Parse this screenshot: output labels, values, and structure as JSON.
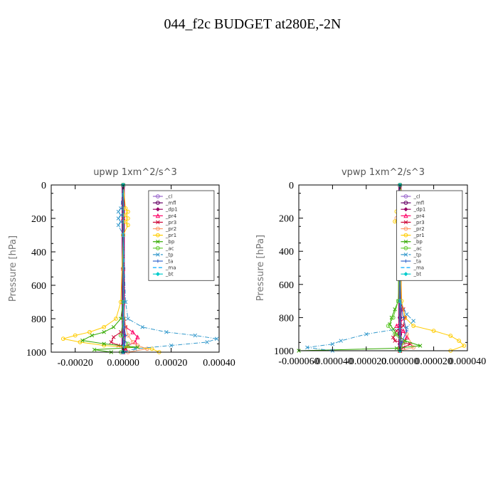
{
  "figure": {
    "title": "044_f2c  BUDGET at280E,-2N"
  },
  "chart_data": [
    {
      "type": "line",
      "title": "upwp   1xm^2/s^3",
      "ylabel": "Pressure [hPa]",
      "xlim": [
        -0.0003,
        0.0004
      ],
      "ylim": [
        1000,
        0
      ],
      "yticks": [
        0,
        200,
        400,
        600,
        800,
        1000
      ],
      "ytick_labels": [
        "0",
        "200",
        "400",
        "600",
        "800",
        "1000"
      ],
      "xticks": [
        -0.0002,
        0.0,
        0.0002,
        0.0004
      ],
      "xtick_labels": [
        "-0.00020",
        "0.00000",
        "0.00020",
        "0.00040"
      ],
      "grid": false,
      "legend_position": "top-right",
      "series": [
        {
          "name": "_cl",
          "color": "#9966cc",
          "style": "solid",
          "marker": "circle",
          "y": [
            0,
            100,
            300,
            500,
            700,
            800,
            900,
            960,
            1000
          ],
          "x": [
            0,
            0,
            0,
            0,
            0,
            0,
            0,
            0,
            0
          ]
        },
        {
          "name": "_mfl",
          "color": "#660066",
          "style": "solid",
          "marker": "circle",
          "y": [
            0,
            100,
            300,
            500,
            700,
            800,
            900,
            960,
            1000
          ],
          "x": [
            0,
            0,
            0,
            0,
            0,
            0,
            0,
            0,
            0
          ]
        },
        {
          "name": "_dp1",
          "color": "#990066",
          "style": "solid",
          "marker": "diamond",
          "y": [
            0,
            100,
            300,
            500,
            700,
            800,
            900,
            960,
            1000
          ],
          "x": [
            0,
            0,
            0,
            0,
            0,
            0,
            0,
            0,
            0
          ]
        },
        {
          "name": "_pr4",
          "color": "#ff0066",
          "style": "solid",
          "marker": "triangle",
          "y": [
            0,
            200,
            500,
            700,
            800,
            850,
            880,
            910,
            940,
            960,
            980,
            1000
          ],
          "x": [
            0,
            0,
            0,
            0,
            3e-06,
            1e-05,
            4e-05,
            6e-05,
            5e-05,
            2e-05,
            1e-05,
            0
          ]
        },
        {
          "name": "_pr3",
          "color": "#cc0033",
          "style": "solid",
          "marker": "x",
          "y": [
            0,
            200,
            500,
            700,
            800,
            850,
            880,
            910,
            940,
            960,
            980,
            1000
          ],
          "x": [
            0,
            0,
            0,
            0,
            3e-06,
            1e-05,
            -1e-05,
            -4e-05,
            -5e-05,
            -2e-05,
            1e-05,
            0
          ]
        },
        {
          "name": "_pr2",
          "color": "#ff9966",
          "style": "solid",
          "marker": "circle",
          "y": [
            0,
            700,
            850,
            900,
            940,
            960,
            980,
            1000
          ],
          "x": [
            0,
            0,
            1e-05,
            2e-05,
            4e-05,
            6e-05,
            0.0001,
            2e-05
          ]
        },
        {
          "name": "_pr1",
          "color": "#ffcc00",
          "style": "solid",
          "marker": "circle",
          "y": [
            0,
            140,
            160,
            180,
            200,
            220,
            240,
            300,
            700,
            800,
            850,
            880,
            900,
            920,
            940,
            960,
            980,
            1000
          ],
          "x": [
            0,
            1e-05,
            2e-05,
            1e-05,
            2e-05,
            1e-05,
            2e-05,
            0,
            -1e-05,
            -3e-05,
            -8e-05,
            -0.00014,
            -0.0002,
            -0.00025,
            -0.00018,
            -8e-05,
            0.00012,
            0.00015
          ]
        },
        {
          "name": "_bp",
          "color": "#33aa00",
          "style": "solid",
          "marker": "x",
          "y": [
            0,
            700,
            800,
            850,
            880,
            900,
            930,
            950,
            970,
            985,
            1000
          ],
          "x": [
            0,
            0,
            -1e-05,
            -4e-05,
            -8e-05,
            -0.00013,
            -0.00017,
            -8e-05,
            6e-05,
            -0.00012,
            -5e-05
          ]
        },
        {
          "name": "_ac",
          "color": "#66cc33",
          "style": "solid",
          "marker": "circle",
          "y": [
            0,
            800,
            900,
            950,
            1000
          ],
          "x": [
            0,
            0,
            -1e-05,
            2e-05,
            -1e-05
          ]
        },
        {
          "name": "_tp",
          "color": "#3399cc",
          "style": "dashdot",
          "marker": "x",
          "y": [
            0,
            140,
            160,
            180,
            200,
            220,
            240,
            300,
            700,
            800,
            850,
            880,
            900,
            920,
            940,
            960,
            980,
            1000
          ],
          "x": [
            0,
            -1e-05,
            -2e-05,
            -1e-05,
            -2e-05,
            -1e-05,
            -2e-05,
            0,
            1e-05,
            2e-05,
            8e-05,
            0.00018,
            0.0003,
            0.00039,
            0.00035,
            0.0002,
            5e-05,
            0
          ]
        },
        {
          "name": "_ta",
          "color": "#3366cc",
          "style": "solid",
          "marker": "plus",
          "y": [
            0,
            700,
            850,
            900,
            940,
            960,
            1000
          ],
          "x": [
            0,
            0,
            5e-06,
            1e-05,
            8e-06,
            3e-06,
            0
          ]
        },
        {
          "name": "_ma",
          "color": "#00aaff",
          "style": "dash",
          "marker": "none",
          "y": [
            0,
            1000
          ],
          "x": [
            0,
            0
          ]
        },
        {
          "name": "_bt",
          "color": "#00cccc",
          "style": "solid",
          "marker": "diamond",
          "y": [
            0,
            1000
          ],
          "x": [
            0,
            0
          ]
        }
      ]
    },
    {
      "type": "line",
      "title": "vpwp   1xm^2/s^3",
      "ylabel": "Pressure [hPa]",
      "xlim": [
        -6e-05,
        4e-05
      ],
      "ylim": [
        1000,
        0
      ],
      "yticks": [
        0,
        200,
        400,
        600,
        800,
        1000
      ],
      "ytick_labels": [
        "0",
        "200",
        "400",
        "600",
        "800",
        "1000"
      ],
      "xticks": [
        -6e-05,
        -4e-05,
        -2e-05,
        0.0,
        2e-05,
        4e-05
      ],
      "xtick_labels": [
        "-0.000060",
        "-0.000040",
        "-0.000020",
        "0.000000",
        "0.000020",
        "0.000040"
      ],
      "grid": false,
      "legend_position": "top-right",
      "series": [
        {
          "name": "_cl",
          "color": "#9966cc",
          "style": "solid",
          "marker": "circle",
          "y": [
            0,
            100,
            300,
            500,
            700,
            800,
            900,
            960,
            1000
          ],
          "x": [
            0,
            0,
            0,
            0,
            0,
            0,
            0,
            0,
            0
          ]
        },
        {
          "name": "_mfl",
          "color": "#660066",
          "style": "solid",
          "marker": "circle",
          "y": [
            0,
            100,
            300,
            500,
            700,
            800,
            900,
            960,
            1000
          ],
          "x": [
            0,
            0,
            0,
            0,
            0,
            0,
            0,
            0,
            0
          ]
        },
        {
          "name": "_dp1",
          "color": "#990066",
          "style": "solid",
          "marker": "diamond",
          "y": [
            0,
            100,
            300,
            500,
            700,
            800,
            900,
            960,
            1000
          ],
          "x": [
            0,
            0,
            0,
            0,
            0,
            0,
            0,
            0,
            0
          ]
        },
        {
          "name": "_pr4",
          "color": "#ff0066",
          "style": "solid",
          "marker": "triangle",
          "y": [
            0,
            700,
            750,
            800,
            850,
            880,
            920,
            950,
            980,
            1000
          ],
          "x": [
            0,
            0,
            2e-06,
            3e-06,
            -2e-06,
            2e-06,
            4e-06,
            2e-06,
            0,
            0
          ]
        },
        {
          "name": "_pr3",
          "color": "#cc0033",
          "style": "solid",
          "marker": "x",
          "y": [
            0,
            700,
            750,
            800,
            850,
            880,
            920,
            940,
            960,
            980,
            1000
          ],
          "x": [
            0,
            0,
            2e-06,
            3e-06,
            2e-06,
            -2e-06,
            -4e-06,
            -3e-06,
            6e-06,
            2e-06,
            0
          ]
        },
        {
          "name": "_pr2",
          "color": "#ff9966",
          "style": "solid",
          "marker": "circle",
          "y": [
            0,
            150,
            200,
            250,
            300,
            700,
            900,
            980,
            1000
          ],
          "x": [
            0,
            2e-06,
            -2e-06,
            1e-06,
            0,
            0,
            4e-06,
            8e-06,
            0
          ]
        },
        {
          "name": "_pr1",
          "color": "#ffcc00",
          "style": "solid",
          "marker": "circle",
          "y": [
            0,
            130,
            160,
            190,
            220,
            250,
            300,
            700,
            800,
            850,
            880,
            910,
            940,
            970,
            1000
          ],
          "x": [
            0,
            2e-06,
            -2e-06,
            2e-06,
            -3e-06,
            2e-06,
            0,
            1e-06,
            3e-06,
            8e-06,
            2e-05,
            3e-05,
            3.5e-05,
            3.8e-05,
            3e-05
          ]
        },
        {
          "name": "_bp",
          "color": "#33aa00",
          "style": "solid",
          "marker": "x",
          "y": [
            0,
            700,
            750,
            800,
            840,
            870,
            900,
            940,
            970,
            985,
            1000
          ],
          "x": [
            0,
            -1e-06,
            -3e-06,
            -5e-06,
            -6e-06,
            -4e-06,
            -2e-06,
            3e-06,
            1.2e-05,
            -2e-06,
            -6e-05
          ]
        },
        {
          "name": "_ac",
          "color": "#66cc33",
          "style": "solid",
          "marker": "circle",
          "y": [
            0,
            700,
            800,
            850,
            900,
            950,
            1000
          ],
          "x": [
            0,
            -1e-06,
            -4e-06,
            -7e-06,
            -3e-06,
            2e-06,
            0
          ]
        },
        {
          "name": "_tp",
          "color": "#3399cc",
          "style": "dashdot",
          "marker": "x",
          "y": [
            0,
            140,
            170,
            200,
            230,
            260,
            300,
            700,
            780,
            820,
            860,
            900,
            940,
            960,
            980,
            1000
          ],
          "x": [
            0,
            -1e-06,
            2e-06,
            4e-06,
            3e-06,
            5e-06,
            0,
            0,
            4e-06,
            8e-06,
            4e-06,
            -2e-05,
            -3.5e-05,
            -4e-05,
            -5.5e-05,
            -4e-05
          ]
        },
        {
          "name": "_ta",
          "color": "#3366cc",
          "style": "solid",
          "marker": "plus",
          "y": [
            0,
            700,
            800,
            880,
            950,
            1000
          ],
          "x": [
            0,
            0,
            2e-06,
            4e-06,
            1e-06,
            0
          ]
        },
        {
          "name": "_ma",
          "color": "#00aaff",
          "style": "dash",
          "marker": "none",
          "y": [
            0,
            1000
          ],
          "x": [
            0,
            0
          ]
        },
        {
          "name": "_bt",
          "color": "#00cccc",
          "style": "solid",
          "marker": "diamond",
          "y": [
            0,
            1000
          ],
          "x": [
            0,
            0
          ]
        }
      ]
    }
  ]
}
